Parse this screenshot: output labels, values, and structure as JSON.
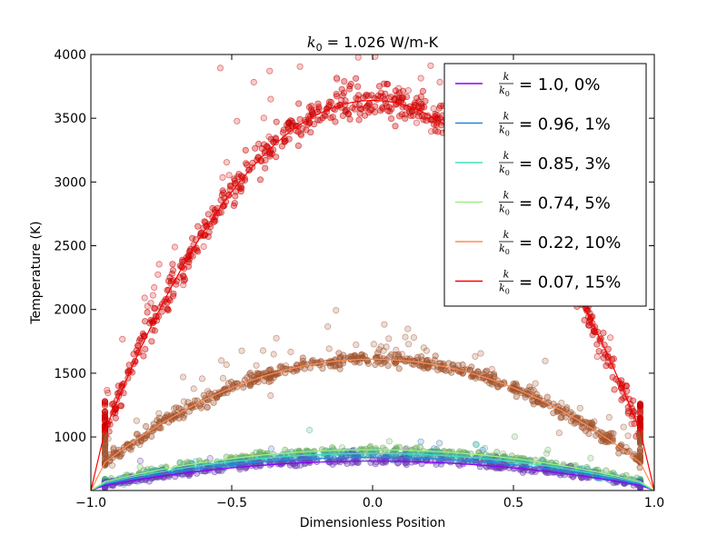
{
  "chart_data": {
    "type": "scatter",
    "title": {
      "symbol": "k",
      "subscript": "0",
      "rest": " = 1.026 W/m-K"
    },
    "xlabel": "Dimensionless Position",
    "ylabel": "Temperature (K)",
    "xlim": [
      -1.0,
      1.0
    ],
    "ylim": [
      580,
      4000
    ],
    "xticks": [
      -1.0,
      -0.5,
      0.0,
      0.5,
      1.0
    ],
    "xtick_labels": [
      "−1.0",
      "−0.5",
      "0.0",
      "0.5",
      "1.0"
    ],
    "yticks": [
      1000,
      1500,
      2000,
      2500,
      3000,
      3500,
      4000
    ],
    "ytick_labels": [
      "1000",
      "1500",
      "2000",
      "2500",
      "3000",
      "3500",
      "4000"
    ],
    "grid": false,
    "legend_position": "top-right",
    "legend_fraction": {
      "numerator": "k",
      "denominator": "k",
      "denominator_sub": "0"
    },
    "series": [
      {
        "name": "= 1.0, 0%",
        "color": "#8b00ff",
        "scatter_color": "#7040b0",
        "edge": 0.95,
        "t_edge": 620,
        "t_center": 810
      },
      {
        "name": "= 0.96, 1%",
        "color": "#1e88e5",
        "scatter_color": "#3a78c0",
        "edge": 0.95,
        "t_edge": 630,
        "t_center": 840
      },
      {
        "name": "= 0.85, 3%",
        "color": "#40e0c0",
        "scatter_color": "#40b0a0",
        "edge": 0.95,
        "t_edge": 640,
        "t_center": 870
      },
      {
        "name": "= 0.74, 5%",
        "color": "#a0f080",
        "scatter_color": "#70b060",
        "edge": 0.95,
        "t_edge": 650,
        "t_center": 900
      },
      {
        "name": "= 0.22, 10%",
        "color": "#ff8c50",
        "scatter_color": "#a0522d",
        "edge": 0.95,
        "t_edge": 800,
        "t_center": 1610
      },
      {
        "name": "= 0.07, 15%",
        "color": "#ff0000",
        "scatter_color": "#cc0000",
        "edge": 0.95,
        "t_edge": 1050,
        "t_center": 3640
      }
    ]
  }
}
